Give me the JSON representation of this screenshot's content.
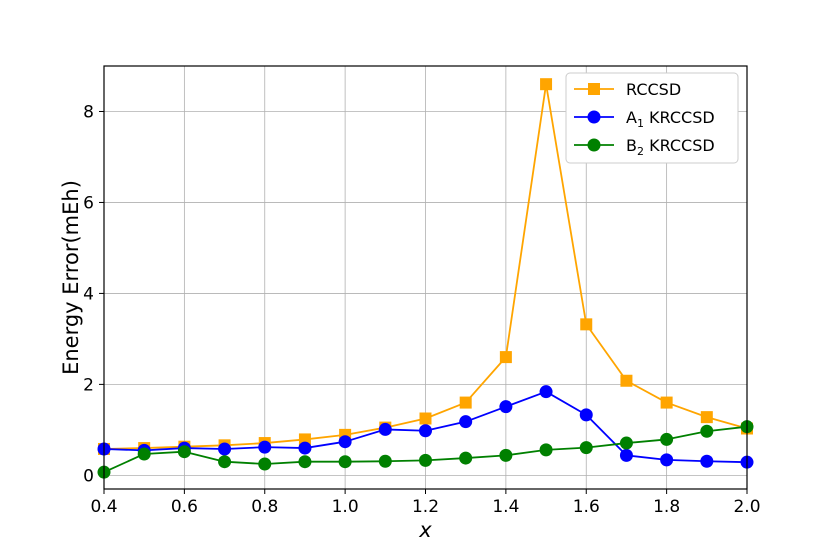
{
  "chart_data": {
    "type": "line",
    "title": "",
    "xlabel": "x",
    "ylabel": "Energy Error(mEh)",
    "xlim": [
      0.4,
      2.0
    ],
    "ylim": [
      -0.3,
      9.0
    ],
    "xticks": [
      "0.4",
      "0.6",
      "0.8",
      "1.0",
      "1.2",
      "1.4",
      "1.6",
      "1.8",
      "2.0"
    ],
    "yticks": [
      "0",
      "2",
      "4",
      "6",
      "8"
    ],
    "grid": true,
    "legend_position": "top-right",
    "x": [
      0.4,
      0.5,
      0.6,
      0.7,
      0.8,
      0.9,
      1.0,
      1.1,
      1.2,
      1.3,
      1.4,
      1.5,
      1.6,
      1.7,
      1.8,
      1.9,
      2.0
    ],
    "series": [
      {
        "name": "RCCSD",
        "legend_main": "RCCSD",
        "legend_sub": "",
        "legend_rest": "",
        "color": "#FFA500",
        "marker": "square",
        "values": [
          0.58,
          0.6,
          0.63,
          0.66,
          0.71,
          0.79,
          0.89,
          1.05,
          1.25,
          1.6,
          2.6,
          8.6,
          3.32,
          2.08,
          1.6,
          1.28,
          1.03
        ]
      },
      {
        "name": "A1 KRCCSD",
        "legend_main": "A",
        "legend_sub": "1",
        "legend_rest": " KRCCSD",
        "color": "#0000FF",
        "marker": "circle",
        "values": [
          0.58,
          0.55,
          0.6,
          0.58,
          0.62,
          0.6,
          0.74,
          1.01,
          0.98,
          1.18,
          1.51,
          1.84,
          1.33,
          0.44,
          0.34,
          0.31,
          0.29
        ]
      },
      {
        "name": "B2 KRCCSD",
        "legend_main": "B",
        "legend_sub": "2",
        "legend_rest": " KRCCSD",
        "color": "#008000",
        "marker": "circle",
        "values": [
          0.07,
          0.47,
          0.52,
          0.3,
          0.25,
          0.3,
          0.3,
          0.31,
          0.33,
          0.38,
          0.44,
          0.56,
          0.61,
          0.71,
          0.79,
          0.97,
          1.07
        ]
      }
    ]
  }
}
